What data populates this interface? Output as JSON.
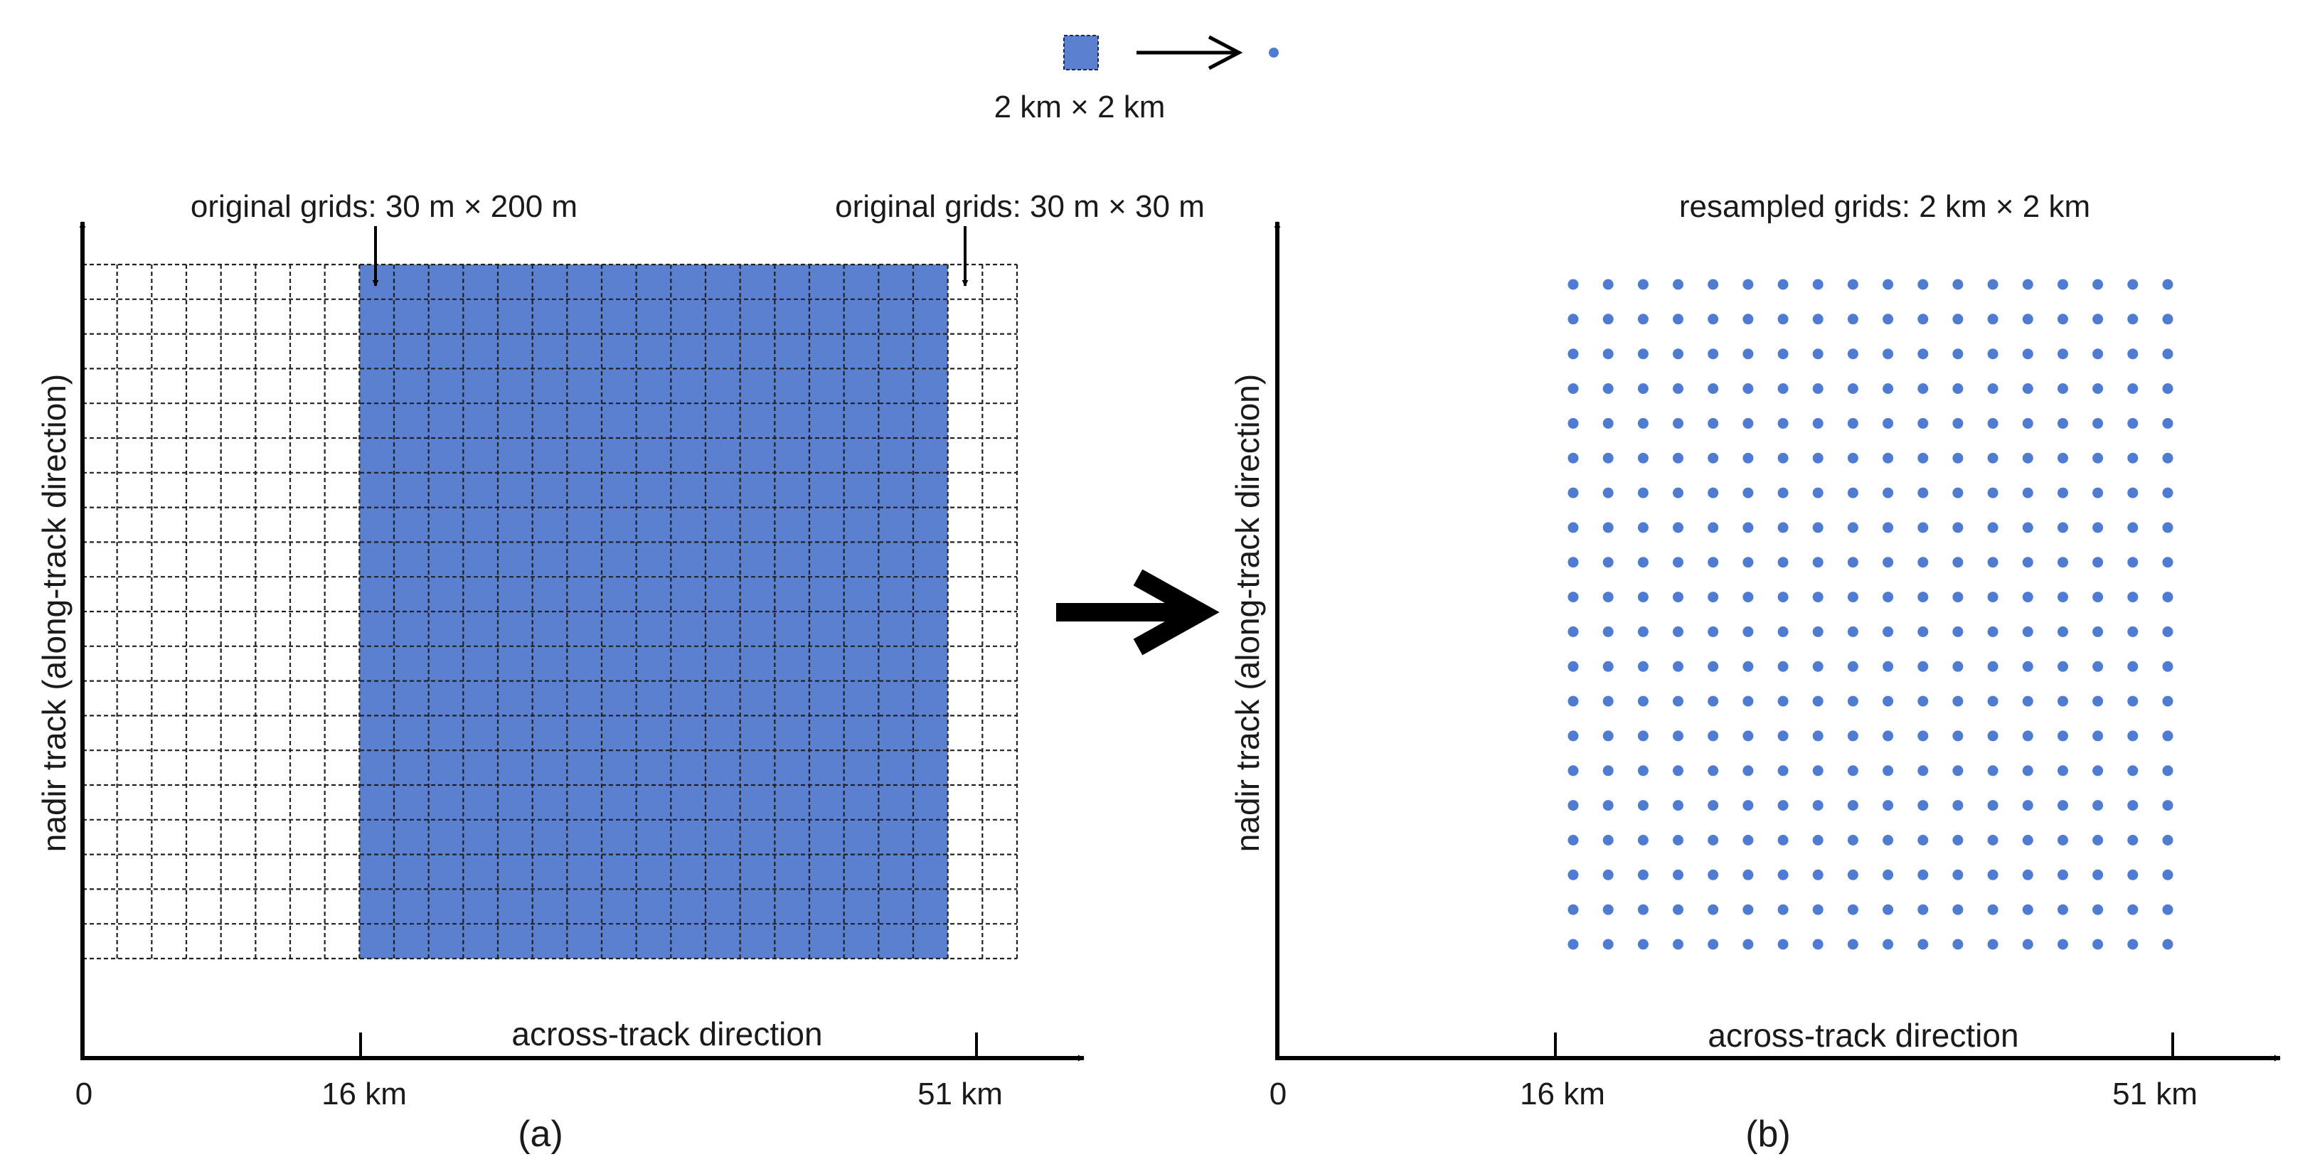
{
  "legend": {
    "caption": "2 km × 2 km",
    "fill_color": "#5b80cf"
  },
  "colors": {
    "cell_fill": "#5b80cf",
    "dot": "#4f7bd0",
    "axis": "#000000"
  },
  "panel_a": {
    "label": "(a)",
    "annot_left": "original grids: 30 m × 200 m",
    "annot_right": "original grids: 30 m × 30 m",
    "x_axis_title": "across-track direction",
    "y_axis_title": "nadir track (along-track direction)",
    "x_ticks": [
      "0",
      "16 km",
      "51 km"
    ],
    "grid_cols": 27,
    "grid_rows": 20,
    "filled_cols_from": 8,
    "filled_cols_to": 25
  },
  "panel_b": {
    "label": "(b)",
    "annot": "resampled grids: 2 km × 2 km",
    "x_axis_title": "across-track direction",
    "y_axis_title": "nadir track (along-track direction)",
    "x_ticks": [
      "0",
      "16 km",
      "51 km"
    ],
    "dot_cols": 18,
    "dot_rows": 20
  },
  "transition_arrow": "arrow-right-icon"
}
